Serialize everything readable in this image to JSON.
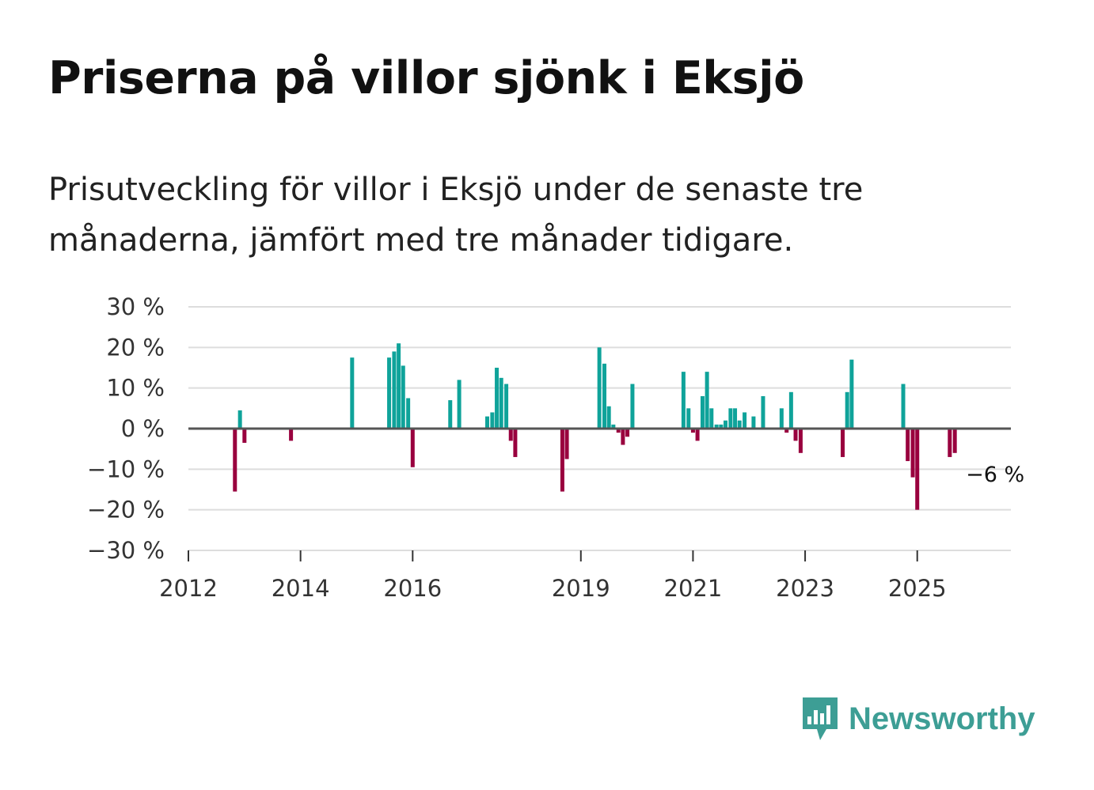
{
  "title": "Priserna på villor sjönk i Eksjö",
  "subtitle": "Prisutveckling för villor i Eksjö under de senaste tre månaderna, jämfört med tre månader tidigare.",
  "brand": {
    "name": "Newsworthy",
    "icon": "newsworthy-logo-icon",
    "color": "#3d9e95"
  },
  "colors": {
    "positive": "#0fa39a",
    "negative": "#99003e",
    "grid": "#dddddd",
    "zero": "#555555"
  },
  "chart_data": {
    "type": "bar",
    "title": "Priserna på villor sjönk i Eksjö",
    "xlabel": "",
    "ylabel": "",
    "ylim": [
      -30,
      30
    ],
    "y_ticks": [
      30,
      20,
      10,
      0,
      -10,
      -20,
      -30
    ],
    "y_tick_labels": [
      "30 %",
      "20 %",
      "10 %",
      "0 %",
      "−10 %",
      "−20 %",
      "−30 %"
    ],
    "xlim": [
      2012.0,
      2026.67
    ],
    "x_ticks": [
      2012,
      2014,
      2016,
      2019,
      2021,
      2023,
      2025
    ],
    "x_tick_labels": [
      "2012",
      "2014",
      "2016",
      "2019",
      "2021",
      "2023",
      "2025"
    ],
    "grid": true,
    "last_value_label": "−6 %",
    "series": [
      {
        "name": "Prisutveckling",
        "unit": "%",
        "x": [
          2012.83,
          2012.92,
          2013.0,
          2013.83,
          2014.92,
          2015.58,
          2015.67,
          2015.75,
          2015.83,
          2015.92,
          2016.0,
          2016.67,
          2016.83,
          2017.33,
          2017.42,
          2017.5,
          2017.58,
          2017.67,
          2017.75,
          2017.83,
          2018.67,
          2018.75,
          2019.33,
          2019.42,
          2019.5,
          2019.58,
          2019.67,
          2019.75,
          2019.83,
          2019.92,
          2020.83,
          2021.0,
          2021.08,
          2020.92,
          2020.83,
          2021.17,
          2021.25,
          2021.33,
          2021.42,
          2021.5,
          2021.58,
          2021.67,
          2021.75,
          2021.83,
          2021.92,
          2022.08,
          2022.25,
          2022.58,
          2022.67,
          2022.75,
          2022.83,
          2022.92,
          2023.67,
          2023.75,
          2023.83,
          2024.75,
          2024.83,
          2024.92,
          2025.0,
          2025.58,
          2025.67
        ],
        "values": [
          -15.5,
          4.5,
          -3.5,
          -3.0,
          17.5,
          17.5,
          19.0,
          21.0,
          15.5,
          7.5,
          -9.5,
          7.0,
          12.0,
          3.0,
          4.0,
          15.0,
          12.5,
          11.0,
          -3.0,
          -7.0,
          -15.5,
          -7.5,
          20.0,
          16.0,
          5.5,
          1.0,
          -1.0,
          -4.0,
          -2.0,
          11.0,
          14.0,
          -1.0,
          -3.0,
          5.0,
          0.0,
          8.0,
          14.0,
          5.0,
          1.0,
          1.0,
          2.0,
          5.0,
          5.0,
          2.0,
          4.0,
          3.0,
          8.0,
          5.0,
          -1.0,
          9.0,
          -3.0,
          -6.0,
          -7.0,
          9.0,
          17.0,
          11.0,
          -8.0,
          -12.0,
          -20.0,
          -7.0,
          -6.0
        ]
      }
    ]
  }
}
